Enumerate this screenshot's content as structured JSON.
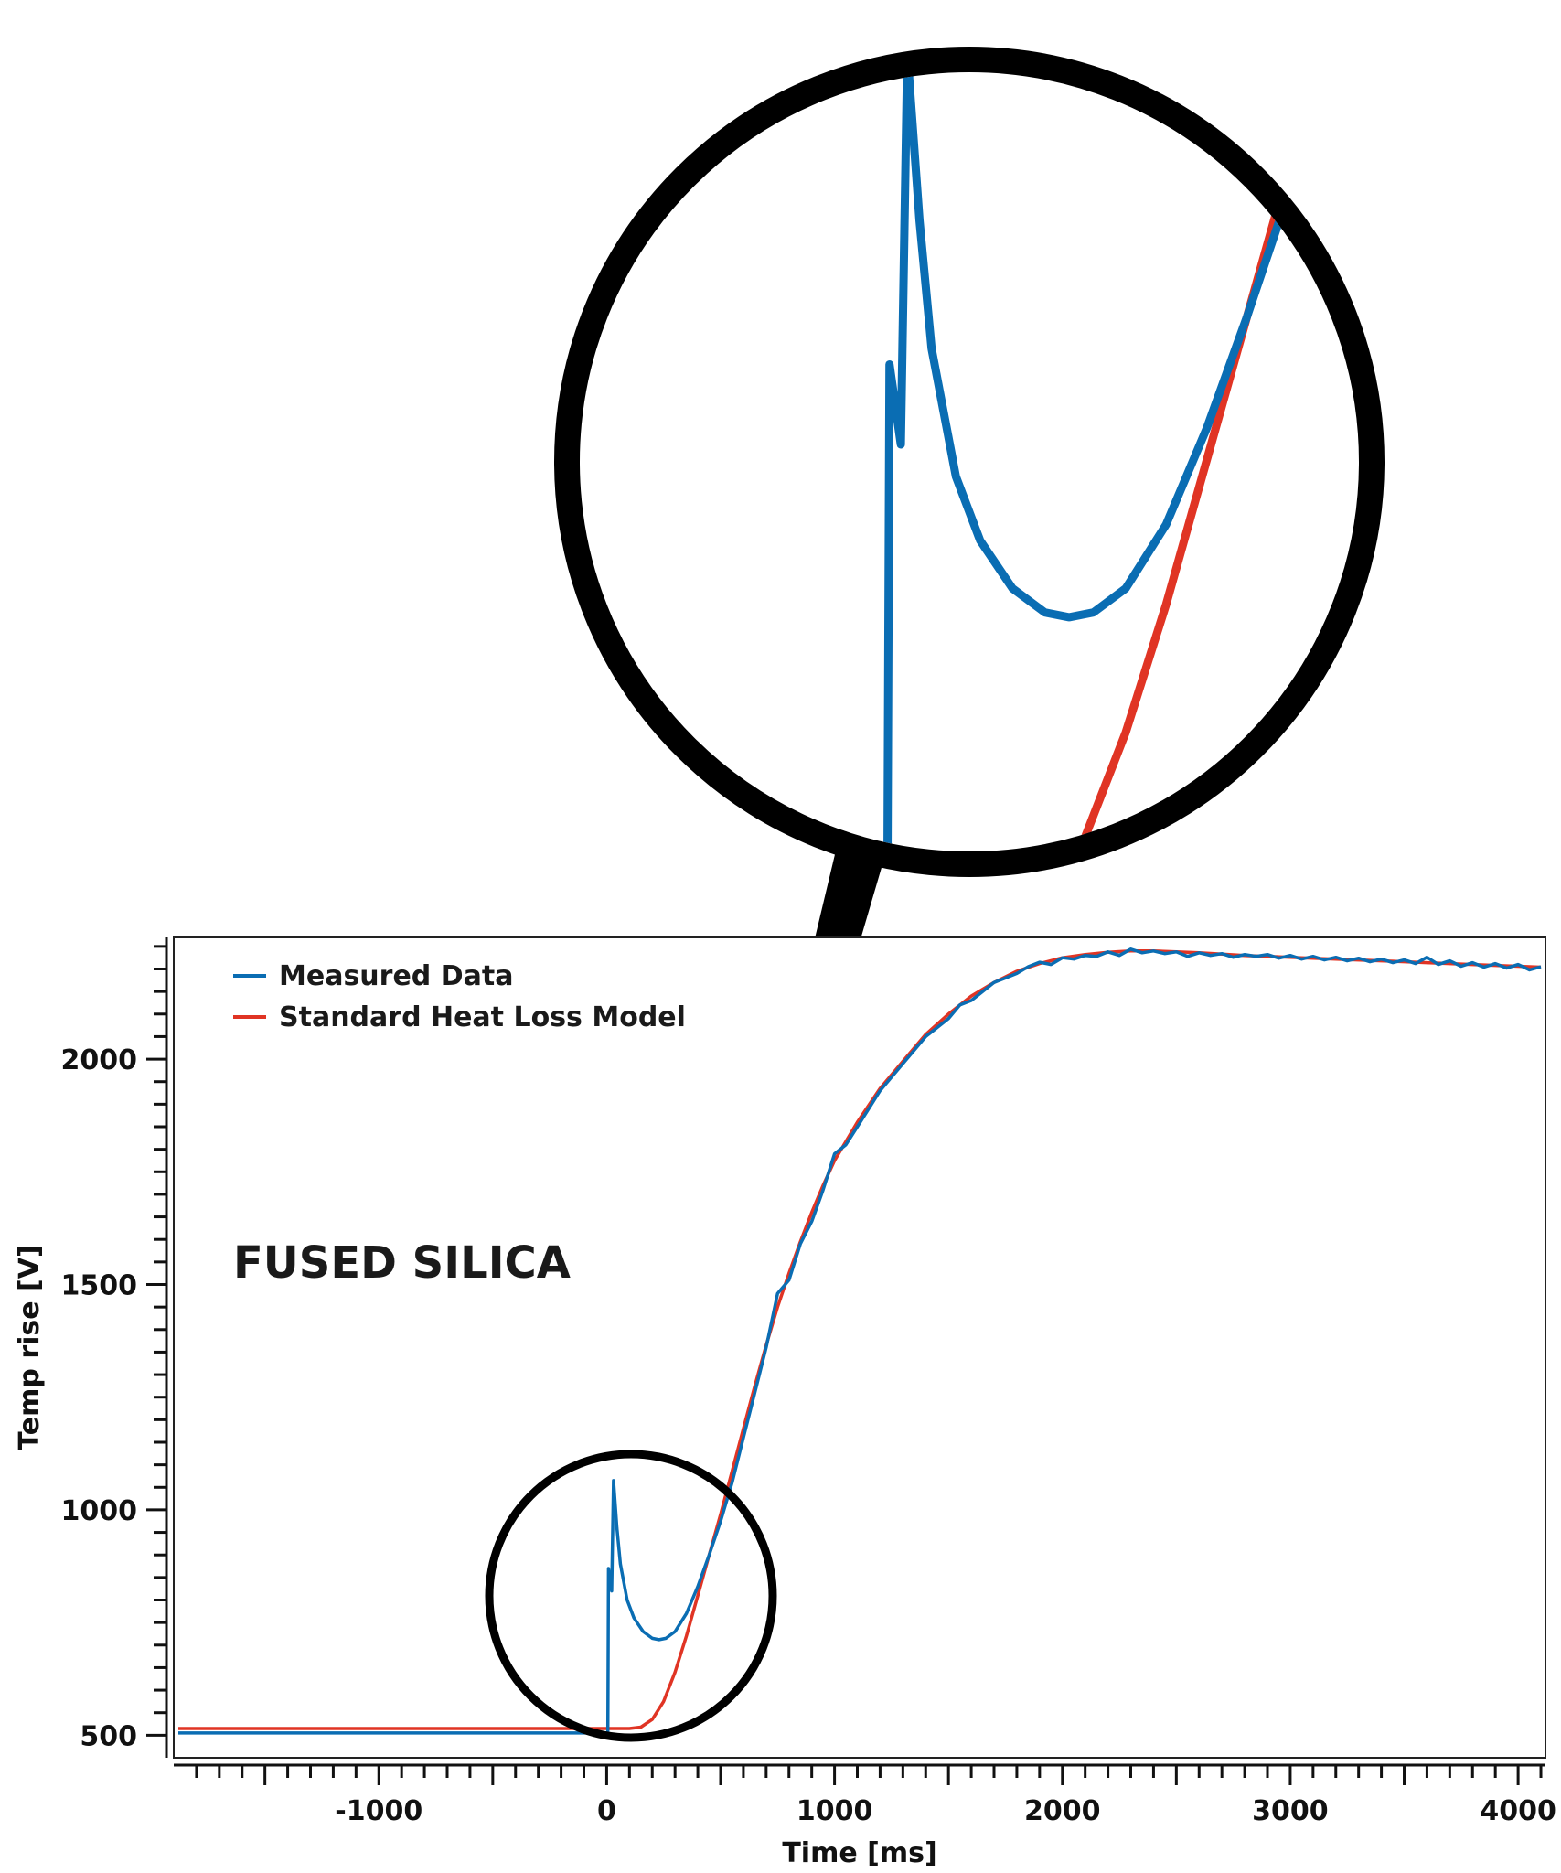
{
  "chart_data": {
    "type": "line",
    "xlabel": "Time [ms]",
    "ylabel": "Temp rise [V]",
    "xlim": [
      -1900,
      4120
    ],
    "ylim": [
      450,
      2270
    ],
    "x_ticks": [
      -1000,
      0,
      1000,
      2000,
      3000,
      4000
    ],
    "x_tick_labels": [
      "-1000",
      "0",
      "1000",
      "2000",
      "3000",
      "4000"
    ],
    "y_ticks": [
      500,
      1000,
      1500,
      2000
    ],
    "y_tick_labels": [
      "500",
      "1000",
      "1500",
      "2000"
    ],
    "grid": false,
    "legend_position": "top-left",
    "annotation": "FUSED SILICA",
    "inset": "magnified view of 0–500 ms region",
    "series": [
      {
        "name": "Measured Data",
        "color": "#0a6db3",
        "points": [
          [
            -1880,
            505
          ],
          [
            -500,
            505
          ],
          [
            0,
            505
          ],
          [
            5,
            505
          ],
          [
            8,
            870
          ],
          [
            22,
            820
          ],
          [
            30,
            1065
          ],
          [
            45,
            960
          ],
          [
            60,
            880
          ],
          [
            90,
            800
          ],
          [
            120,
            760
          ],
          [
            160,
            730
          ],
          [
            200,
            715
          ],
          [
            230,
            712
          ],
          [
            260,
            715
          ],
          [
            300,
            730
          ],
          [
            350,
            770
          ],
          [
            400,
            830
          ],
          [
            450,
            900
          ],
          [
            500,
            975
          ],
          [
            550,
            1060
          ],
          [
            600,
            1160
          ],
          [
            650,
            1260
          ],
          [
            700,
            1360
          ],
          [
            750,
            1480
          ],
          [
            800,
            1510
          ],
          [
            850,
            1590
          ],
          [
            900,
            1640
          ],
          [
            950,
            1710
          ],
          [
            1000,
            1790
          ],
          [
            1050,
            1810
          ],
          [
            1100,
            1850
          ],
          [
            1150,
            1890
          ],
          [
            1200,
            1930
          ],
          [
            1250,
            1960
          ],
          [
            1300,
            1990
          ],
          [
            1350,
            2020
          ],
          [
            1400,
            2050
          ],
          [
            1450,
            2070
          ],
          [
            1500,
            2090
          ],
          [
            1550,
            2120
          ],
          [
            1600,
            2130
          ],
          [
            1650,
            2150
          ],
          [
            1700,
            2170
          ],
          [
            1750,
            2180
          ],
          [
            1800,
            2190
          ],
          [
            1850,
            2205
          ],
          [
            1900,
            2215
          ],
          [
            1950,
            2210
          ],
          [
            2000,
            2225
          ],
          [
            2050,
            2222
          ],
          [
            2100,
            2230
          ],
          [
            2150,
            2228
          ],
          [
            2200,
            2238
          ],
          [
            2250,
            2230
          ],
          [
            2300,
            2244
          ],
          [
            2350,
            2236
          ],
          [
            2400,
            2240
          ],
          [
            2450,
            2234
          ],
          [
            2500,
            2238
          ],
          [
            2550,
            2228
          ],
          [
            2600,
            2236
          ],
          [
            2650,
            2230
          ],
          [
            2700,
            2234
          ],
          [
            2750,
            2226
          ],
          [
            2800,
            2232
          ],
          [
            2850,
            2228
          ],
          [
            2900,
            2232
          ],
          [
            2950,
            2224
          ],
          [
            3000,
            2230
          ],
          [
            3050,
            2222
          ],
          [
            3100,
            2228
          ],
          [
            3150,
            2220
          ],
          [
            3200,
            2226
          ],
          [
            3250,
            2218
          ],
          [
            3300,
            2224
          ],
          [
            3350,
            2216
          ],
          [
            3400,
            2222
          ],
          [
            3450,
            2214
          ],
          [
            3500,
            2220
          ],
          [
            3550,
            2212
          ],
          [
            3600,
            2226
          ],
          [
            3650,
            2210
          ],
          [
            3700,
            2218
          ],
          [
            3750,
            2206
          ],
          [
            3800,
            2214
          ],
          [
            3850,
            2204
          ],
          [
            3900,
            2212
          ],
          [
            3950,
            2202
          ],
          [
            4000,
            2210
          ],
          [
            4050,
            2198
          ],
          [
            4100,
            2205
          ]
        ]
      },
      {
        "name": "Standard Heat Loss Model",
        "color": "#e03424",
        "points": [
          [
            -1880,
            515
          ],
          [
            0,
            515
          ],
          [
            100,
            515
          ],
          [
            150,
            518
          ],
          [
            200,
            535
          ],
          [
            250,
            575
          ],
          [
            300,
            640
          ],
          [
            350,
            720
          ],
          [
            400,
            810
          ],
          [
            450,
            900
          ],
          [
            500,
            990
          ],
          [
            550,
            1085
          ],
          [
            600,
            1180
          ],
          [
            650,
            1275
          ],
          [
            700,
            1365
          ],
          [
            750,
            1450
          ],
          [
            800,
            1525
          ],
          [
            850,
            1595
          ],
          [
            900,
            1660
          ],
          [
            950,
            1720
          ],
          [
            1000,
            1775
          ],
          [
            1100,
            1860
          ],
          [
            1200,
            1935
          ],
          [
            1300,
            1995
          ],
          [
            1400,
            2055
          ],
          [
            1500,
            2100
          ],
          [
            1600,
            2140
          ],
          [
            1700,
            2170
          ],
          [
            1800,
            2195
          ],
          [
            1900,
            2212
          ],
          [
            2000,
            2225
          ],
          [
            2100,
            2232
          ],
          [
            2200,
            2237
          ],
          [
            2300,
            2240
          ],
          [
            2400,
            2240
          ],
          [
            2500,
            2238
          ],
          [
            2600,
            2236
          ],
          [
            2700,
            2233
          ],
          [
            2800,
            2230
          ],
          [
            2900,
            2228
          ],
          [
            3000,
            2226
          ],
          [
            3200,
            2222
          ],
          [
            3400,
            2218
          ],
          [
            3600,
            2214
          ],
          [
            3800,
            2210
          ],
          [
            4000,
            2206
          ],
          [
            4100,
            2204
          ]
        ]
      }
    ]
  }
}
